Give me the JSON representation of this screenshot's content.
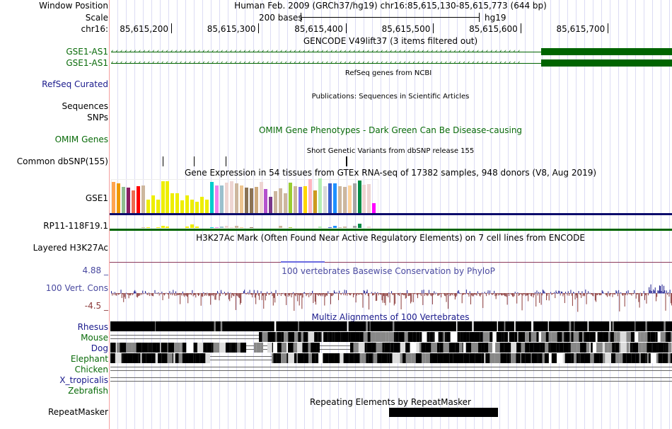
{
  "header": {
    "window_position_label": "Window Position",
    "position_text": "Human Feb. 2009 (GRCh37/hg19)   chr16:85,615,130-85,615,773 (644 bp)",
    "scale_label": "Scale",
    "scale_text": "200 bases",
    "assembly": "hg19",
    "chrom_label": "chr16:"
  },
  "ruler": {
    "start": 85615130,
    "end": 85615773,
    "ticks": [
      "85,615,200",
      "85,615,300",
      "85,615,400",
      "85,615,500",
      "85,615,600",
      "85,615,700"
    ],
    "tick_positions": [
      85615200,
      85615300,
      85615400,
      85615500,
      85615600,
      85615700
    ]
  },
  "tracks": {
    "gencode": {
      "title": "GENCODE V49lift37 (3 items filtered out)",
      "items": [
        "GSE1-AS1",
        "GSE1-AS1"
      ],
      "color": "#006400"
    },
    "refseq": {
      "title": "RefSeq genes from NCBI",
      "label": "RefSeq Curated"
    },
    "pubs": {
      "title": "Publications: Sequences in Scientific Articles",
      "label1": "Sequences",
      "label2": "SNPs"
    },
    "omim": {
      "title": "OMIM Gene Phenotypes - Dark Green Can Be Disease-causing",
      "label": "OMIM Genes"
    },
    "dbsnp": {
      "title": "Short Genetic Variants from dbSNP release 155",
      "label": "Common dbSNP(155)",
      "positions": [
        85615190,
        85615226,
        85615262,
        85615400
      ]
    },
    "gtex": {
      "title": "Gene Expression in 54 tissues from GTEx RNA-seq of 17382 samples, 948 donors (V8, Aug 2019)",
      "gene1": "GSE1",
      "gene2": "RP11-118F19.1",
      "colors": [
        "#ffa54f",
        "#ee9a00",
        "#8fbc8f",
        "#8b1c62",
        "#ee6a50",
        "#ff0000",
        "#cdb79e",
        "#eeee00",
        "#eeee00",
        "#eeee00",
        "#eeee00",
        "#eeee00",
        "#eeee00",
        "#eeee00",
        "#eeee00",
        "#eeee00",
        "#eeee00",
        "#eeee00",
        "#eeee00",
        "#eeee00",
        "#00cdcd",
        "#ee82ee",
        "#9ac0cd",
        "#eed5d2",
        "#eed5d2",
        "#cdb79e",
        "#eec591",
        "#8b7355",
        "#8b7355",
        "#cdaa7d",
        "#eed5d2",
        "#b452cd",
        "#7a378b",
        "#cdb79e",
        "#cdb79e",
        "#cdb79e",
        "#9acd32",
        "#cdb79e",
        "#7b68ee",
        "#ffd700",
        "#ffb6c1",
        "#cd9b1d",
        "#b4eeb4",
        "#d9d9d9",
        "#3a5fcd",
        "#1e90ff",
        "#cdb79e",
        "#cdb79e",
        "#ffd39b",
        "#a6a6a6",
        "#008b45",
        "#eed5d2",
        "#eed5d2",
        "#ff00ff"
      ],
      "gse1_levels": [
        44,
        42,
        37,
        36,
        32,
        38,
        39,
        19,
        25,
        19,
        45,
        45,
        28,
        28,
        18,
        25,
        19,
        16,
        23,
        19,
        44,
        39,
        39,
        43,
        45,
        42,
        39,
        36,
        35,
        37,
        44,
        34,
        23,
        31,
        35,
        28,
        43,
        38,
        37,
        38,
        48,
        32,
        49,
        38,
        42,
        42,
        38,
        37,
        39,
        42,
        46,
        40,
        41,
        14
      ],
      "rp11_levels": [
        0,
        0,
        0,
        0,
        0,
        0,
        1,
        1,
        0,
        1,
        3,
        2,
        0,
        0,
        0,
        2,
        5,
        2,
        0,
        0,
        1,
        1,
        2,
        3,
        1,
        3,
        1,
        0,
        1,
        0,
        0,
        0,
        0,
        0,
        3,
        0,
        1,
        0,
        0,
        0,
        0,
        0,
        2,
        0,
        1,
        3,
        1,
        2,
        0,
        3,
        6,
        0,
        2,
        0
      ]
    },
    "h3k27ac": {
      "title": "H3K27Ac Mark (Often Found Near Active Regulatory Elements) on 7 cell lines from ENCODE",
      "label": "Layered H3K27Ac"
    },
    "phylop": {
      "title": "100 vertebrates Basewise Conservation by PhyloP",
      "label": "100 Vert. Cons",
      "max": "4.88 _",
      "min": "-4.5 _"
    },
    "multiz": {
      "title": "Multiz Alignments of 100 Vertebrates",
      "species": [
        {
          "name": "Rhesus",
          "color": "#1a1a8c"
        },
        {
          "name": "Mouse",
          "color": "#0a6b0a"
        },
        {
          "name": "Dog",
          "color": "#1a1a8c"
        },
        {
          "name": "Elephant",
          "color": "#0a6b0a"
        },
        {
          "name": "Chicken",
          "color": "#0a6b0a"
        },
        {
          "name": "X_tropicalis",
          "color": "#1a1a8c"
        },
        {
          "name": "Zebrafish",
          "color": "#0a6b0a"
        }
      ]
    },
    "rmsk": {
      "title": "Repeating Elements by RepeatMasker",
      "label": "RepeatMasker"
    }
  }
}
